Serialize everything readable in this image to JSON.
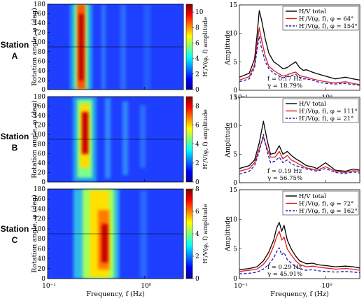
{
  "figure": {
    "stations": [
      {
        "line1": "Station",
        "line2": "A"
      },
      {
        "line1": "Station",
        "line2": "B"
      },
      {
        "line1": "Station",
        "line2": "C"
      }
    ],
    "heatmap_xlabel": "Frequency, f (Hz)",
    "heatmap_ylabel": "Rotation angle, φ (deg)",
    "spectra_xlabel": "Frequency, f (Hz)",
    "spectra_ylabel": "Amplitude",
    "colorbar_label": "H′/V(φ, f) amplitude",
    "x_ticks": [
      "10⁻¹",
      "10⁰"
    ],
    "y_ticks_angle": [
      "0",
      "20",
      "40",
      "60",
      "80",
      "100",
      "120",
      "140",
      "160",
      "180"
    ]
  },
  "chart_data": [
    {
      "type": "heatmap",
      "station": "A",
      "xscale": "log",
      "xlim": [
        0.1,
        2.5
      ],
      "ylim": [
        0,
        180
      ],
      "peak_frequency": 0.17,
      "colorbar_ticks": [
        "0",
        "2",
        "4",
        "6",
        "8",
        "10"
      ],
      "color_range": [
        0,
        11
      ]
    },
    {
      "type": "heatmap",
      "station": "B",
      "xscale": "log",
      "xlim": [
        0.1,
        2.5
      ],
      "ylim": [
        0,
        180
      ],
      "peak_frequency": 0.19,
      "colorbar_ticks": [
        "0",
        "2",
        "4",
        "6",
        "8"
      ],
      "color_range": [
        0,
        9
      ]
    },
    {
      "type": "heatmap",
      "station": "C",
      "xscale": "log",
      "xlim": [
        0.1,
        2.5
      ],
      "ylim": [
        0,
        180
      ],
      "peak_frequency": 0.29,
      "colorbar_ticks": [
        "0",
        "2",
        "4",
        "6",
        "8"
      ],
      "color_range": [
        0,
        8
      ]
    },
    {
      "type": "line",
      "station": "A",
      "xscale": "log",
      "xlim": [
        0.1,
        2.5
      ],
      "ylim": [
        0,
        15
      ],
      "yticks": [
        "0",
        "5",
        "10",
        "15"
      ],
      "legend": [
        "H/V total",
        "H′/V(φ, f), φ = 64°",
        "H′/V(φ, f), φ = 154°"
      ],
      "legend_position": "top-right",
      "annotation_f": "f = 0.17 Hz",
      "annotation_gamma": "γ = 18.79%",
      "x": [
        0.1,
        0.13,
        0.15,
        0.16,
        0.17,
        0.18,
        0.2,
        0.22,
        0.25,
        0.28,
        0.32,
        0.36,
        0.4,
        0.45,
        0.5,
        0.55,
        0.6,
        0.7,
        0.8,
        1.0,
        1.3,
        1.7,
        2.1,
        2.5
      ],
      "series": [
        {
          "name": "H/V total",
          "color": "#000000",
          "dash": "solid",
          "values": [
            2.3,
            3.0,
            5.5,
            9.5,
            14.0,
            12.5,
            9.0,
            6.5,
            5.0,
            4.5,
            3.8,
            4.0,
            4.5,
            5.0,
            4.0,
            3.5,
            3.6,
            3.2,
            2.9,
            2.5,
            2.0,
            2.3,
            2.0,
            1.8
          ]
        },
        {
          "name": "H′/V(φ, f), φ = 64°",
          "color": "#e0191c",
          "dash": "solid",
          "values": [
            1.8,
            2.4,
            4.5,
            8.0,
            11.0,
            9.0,
            6.0,
            4.2,
            3.5,
            3.0,
            2.5,
            2.7,
            3.0,
            3.2,
            2.6,
            2.4,
            2.3,
            2.0,
            1.8,
            1.5,
            1.3,
            1.5,
            1.2,
            1.0
          ]
        },
        {
          "name": "H′/V(φ, f), φ = 154°",
          "color": "#1a1ab8",
          "dash": "dashed",
          "values": [
            1.5,
            2.0,
            4.0,
            7.0,
            9.5,
            7.5,
            5.0,
            3.8,
            3.0,
            2.6,
            2.2,
            2.4,
            2.6,
            2.8,
            2.3,
            2.0,
            2.0,
            1.8,
            1.5,
            1.2,
            1.1,
            1.2,
            1.0,
            0.9
          ]
        }
      ]
    },
    {
      "type": "line",
      "station": "B",
      "xscale": "log",
      "xlim": [
        0.1,
        2.5
      ],
      "ylim": [
        0,
        15
      ],
      "yticks": [
        "0",
        "5",
        "10",
        "15"
      ],
      "legend": [
        "H/V total",
        "H′/V(φ, f), φ = 111°",
        "H′/V(φ, f), φ = 21°"
      ],
      "legend_position": "top-right",
      "annotation_f": "f = 0.19 Hz",
      "annotation_gamma": "γ = 56.75%",
      "x": [
        0.1,
        0.13,
        0.15,
        0.17,
        0.19,
        0.21,
        0.23,
        0.26,
        0.29,
        0.32,
        0.36,
        0.4,
        0.45,
        0.5,
        0.6,
        0.7,
        0.8,
        1.0,
        1.3,
        1.7,
        2.1,
        2.5
      ],
      "series": [
        {
          "name": "H/V total",
          "color": "#000000",
          "dash": "solid",
          "values": [
            2.5,
            3.0,
            4.0,
            7.0,
            10.8,
            7.5,
            5.0,
            5.2,
            6.5,
            5.0,
            5.5,
            4.8,
            4.2,
            3.8,
            3.0,
            2.8,
            2.5,
            3.5,
            2.2,
            2.0,
            2.4,
            2.2
          ]
        },
        {
          "name": "H′/V(φ, f), φ = 111°",
          "color": "#e0191c",
          "dash": "solid",
          "values": [
            2.0,
            2.5,
            3.5,
            6.0,
            8.0,
            6.0,
            4.5,
            4.5,
            5.5,
            4.2,
            4.8,
            4.0,
            3.6,
            3.2,
            2.6,
            2.4,
            2.2,
            2.8,
            2.0,
            1.8,
            2.1,
            2.0
          ]
        },
        {
          "name": "H′/V(φ, f), φ = 21°",
          "color": "#1a1ab8",
          "dash": "dashed",
          "values": [
            1.5,
            2.0,
            3.0,
            5.5,
            8.5,
            5.5,
            3.5,
            3.8,
            4.5,
            3.5,
            4.0,
            3.3,
            3.0,
            2.8,
            2.4,
            2.2,
            2.0,
            2.5,
            1.8,
            1.6,
            1.9,
            1.7
          ]
        }
      ]
    },
    {
      "type": "line",
      "station": "C",
      "xscale": "log",
      "xlim": [
        0.1,
        2.5
      ],
      "ylim": [
        0,
        15
      ],
      "yticks": [
        "0",
        "5",
        "10",
        "15"
      ],
      "legend": [
        "H/V total",
        "H′/V(φ, f), φ = 72°",
        "H′/V(φ, f), φ = 162°"
      ],
      "legend_position": "top-right",
      "annotation_f": "f = 0.29 Hz",
      "annotation_gamma": "γ = 45.91%",
      "x": [
        0.1,
        0.13,
        0.16,
        0.19,
        0.22,
        0.25,
        0.27,
        0.29,
        0.31,
        0.33,
        0.36,
        0.4,
        0.45,
        0.5,
        0.6,
        0.7,
        0.85,
        1.0,
        1.3,
        1.7,
        2.1,
        2.5
      ],
      "series": [
        {
          "name": "H/V total",
          "color": "#000000",
          "dash": "solid",
          "values": [
            1.5,
            1.7,
            2.0,
            3.0,
            4.5,
            6.5,
            8.5,
            9.5,
            8.0,
            9.0,
            6.5,
            5.0,
            3.8,
            3.0,
            2.5,
            2.6,
            2.3,
            2.2,
            2.0,
            2.1,
            2.0,
            1.8
          ]
        },
        {
          "name": "H′/V(φ, f), φ = 72°",
          "color": "#e0191c",
          "dash": "solid",
          "values": [
            1.2,
            1.4,
            1.6,
            2.4,
            3.6,
            5.5,
            7.0,
            8.0,
            6.5,
            7.0,
            5.0,
            4.0,
            3.0,
            2.4,
            2.0,
            2.1,
            1.9,
            1.8,
            1.6,
            1.7,
            1.6,
            1.4
          ]
        },
        {
          "name": "H′/V(φ, f), φ = 162°",
          "color": "#1a1ab8",
          "dash": "dashed",
          "values": [
            0.8,
            0.9,
            1.1,
            1.6,
            2.4,
            3.5,
            4.5,
            5.2,
            4.0,
            4.4,
            3.2,
            2.6,
            2.0,
            1.6,
            1.4,
            1.5,
            1.3,
            1.2,
            1.1,
            1.2,
            1.1,
            1.0
          ]
        }
      ]
    }
  ]
}
